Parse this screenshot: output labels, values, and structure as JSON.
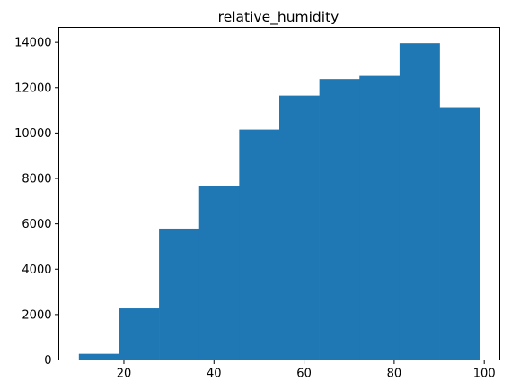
{
  "chart_data": {
    "type": "bar",
    "title": "relative_humidity",
    "xlabel": "",
    "ylabel": "",
    "bin_edges": [
      10.0,
      18.9,
      27.8,
      36.7,
      45.6,
      54.5,
      63.4,
      72.3,
      81.2,
      90.1,
      99.0
    ],
    "values": [
      270,
      2270,
      5790,
      7660,
      10150,
      11650,
      12380,
      12520,
      13960,
      11140
    ],
    "xlim": [
      5.55,
      103.45
    ],
    "ylim": [
      0,
      14658
    ],
    "x_ticks": [
      20,
      40,
      60,
      80,
      100
    ],
    "y_ticks": [
      0,
      2000,
      4000,
      6000,
      8000,
      10000,
      12000,
      14000
    ],
    "grid": false,
    "legend": "none",
    "bar_color": "#1f77b4"
  }
}
